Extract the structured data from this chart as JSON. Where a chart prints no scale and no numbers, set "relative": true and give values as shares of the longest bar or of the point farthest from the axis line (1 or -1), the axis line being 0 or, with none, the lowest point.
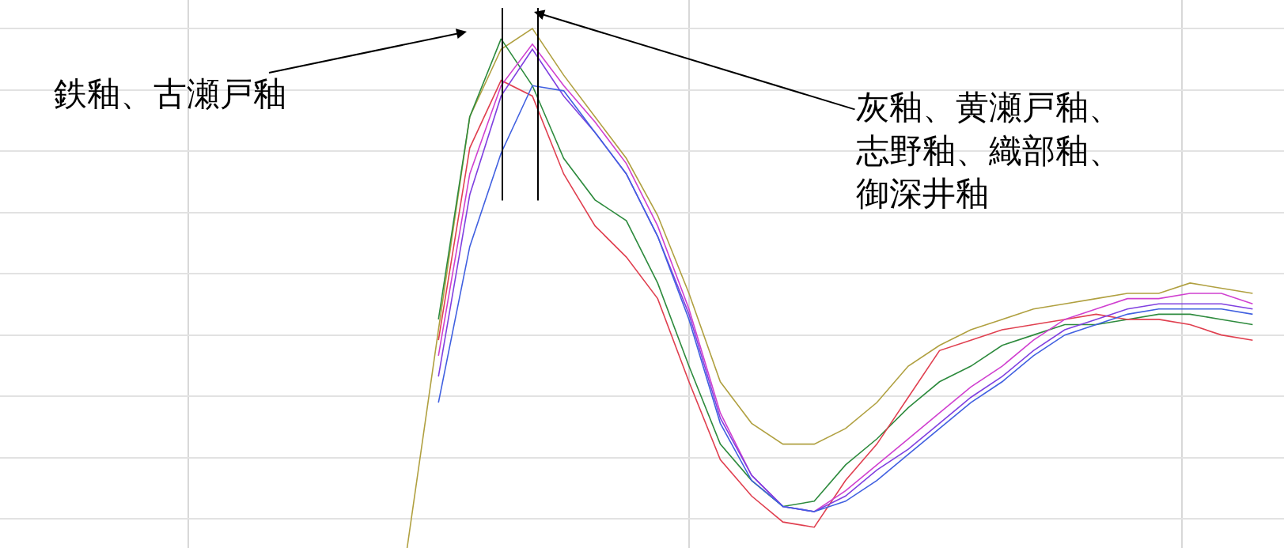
{
  "chart_data": {
    "type": "line",
    "relative": true,
    "grid": true,
    "marker": "none",
    "line_style": "solid",
    "categories": [
      null,
      null,
      null,
      null,
      null,
      null,
      null,
      null,
      null,
      null,
      null,
      null,
      null,
      null,
      null,
      null,
      null,
      null,
      null,
      null,
      null,
      null,
      null,
      null,
      null,
      null,
      null,
      null,
      null,
      null,
      null,
      null,
      null,
      null,
      null,
      null,
      null,
      null,
      null,
      null,
      null
    ],
    "series": [
      {
        "color": "#b0a040",
        "values": [
          null,
          null,
          null,
          null,
          null,
          null,
          null,
          null,
          null,
          null,
          null,
          null,
          null,
          0.0,
          0.42,
          0.83,
          0.96,
          1.0,
          0.91,
          0.83,
          0.75,
          0.64,
          0.49,
          0.32,
          0.24,
          0.2,
          0.2,
          0.23,
          0.28,
          0.35,
          0.39,
          0.42,
          0.44,
          0.46,
          0.47,
          0.48,
          0.49,
          0.49,
          0.51,
          0.5,
          0.49
        ]
      },
      {
        "color": "#2e8b3e",
        "values": [
          null,
          null,
          null,
          null,
          null,
          null,
          null,
          null,
          null,
          null,
          null,
          null,
          null,
          null,
          0.44,
          0.83,
          0.98,
          0.89,
          0.75,
          0.67,
          0.63,
          0.51,
          0.35,
          0.2,
          0.13,
          0.08,
          0.09,
          0.16,
          0.21,
          0.27,
          0.32,
          0.35,
          0.39,
          0.41,
          0.43,
          0.43,
          0.44,
          0.45,
          0.45,
          0.44,
          0.43
        ]
      },
      {
        "color": "#e04050",
        "values": [
          null,
          null,
          null,
          null,
          null,
          null,
          null,
          null,
          null,
          null,
          null,
          null,
          null,
          null,
          0.4,
          0.77,
          0.9,
          0.87,
          0.72,
          0.62,
          0.56,
          0.48,
          0.32,
          0.17,
          0.1,
          0.05,
          0.04,
          0.13,
          0.2,
          0.29,
          0.38,
          0.4,
          0.42,
          0.43,
          0.44,
          0.45,
          0.44,
          0.44,
          0.43,
          0.41,
          0.4
        ]
      },
      {
        "color": "#d040d0",
        "values": [
          null,
          null,
          null,
          null,
          null,
          null,
          null,
          null,
          null,
          null,
          null,
          null,
          null,
          null,
          0.37,
          0.72,
          0.89,
          0.97,
          0.89,
          0.82,
          0.74,
          0.62,
          0.46,
          0.26,
          0.14,
          0.08,
          0.07,
          0.11,
          0.16,
          0.21,
          0.26,
          0.31,
          0.35,
          0.4,
          0.44,
          0.46,
          0.48,
          0.48,
          0.49,
          0.49,
          0.47
        ]
      },
      {
        "color": "#8040e0",
        "values": [
          null,
          null,
          null,
          null,
          null,
          null,
          null,
          null,
          null,
          null,
          null,
          null,
          null,
          null,
          0.33,
          0.68,
          0.87,
          0.96,
          0.87,
          0.8,
          0.72,
          0.6,
          0.45,
          0.25,
          0.14,
          0.08,
          0.07,
          0.1,
          0.15,
          0.19,
          0.24,
          0.29,
          0.33,
          0.38,
          0.42,
          0.44,
          0.46,
          0.47,
          0.47,
          0.47,
          0.46
        ]
      },
      {
        "color": "#4060e0",
        "values": [
          null,
          null,
          null,
          null,
          null,
          null,
          null,
          null,
          null,
          null,
          null,
          null,
          null,
          null,
          0.28,
          0.58,
          0.76,
          0.89,
          0.88,
          0.8,
          0.72,
          0.6,
          0.44,
          0.24,
          0.13,
          0.08,
          0.07,
          0.09,
          0.13,
          0.18,
          0.23,
          0.28,
          0.32,
          0.37,
          0.41,
          0.43,
          0.45,
          0.46,
          0.46,
          0.46,
          0.45
        ]
      }
    ],
    "annotations": [
      "鉄釉、古瀬戸釉",
      "灰釉、黄瀬戸釉、志野釉、織部釉、御深井釉"
    ]
  }
}
